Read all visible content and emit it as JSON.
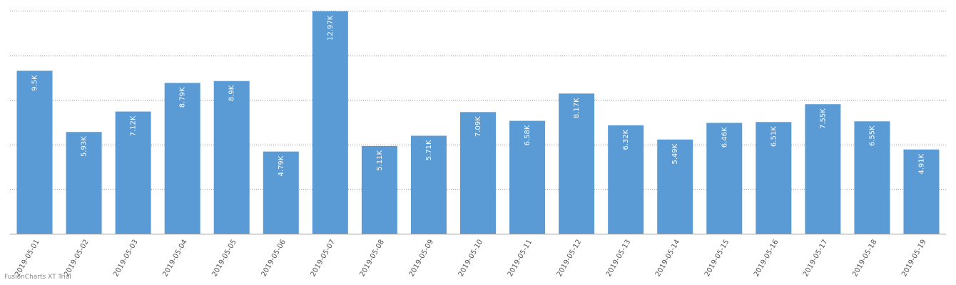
{
  "chart_data": {
    "type": "bar",
    "categories": [
      "2019-05-01",
      "2019-05-02",
      "2019-05-03",
      "2019-05-04",
      "2019-05-05",
      "2019-05-06",
      "2019-05-07",
      "2019-05-08",
      "2019-05-09",
      "2019-05-10",
      "2019-05-11",
      "2019-05-12",
      "2019-05-13",
      "2019-05-14",
      "2019-05-15",
      "2019-05-16",
      "2019-05-17",
      "2019-05-18",
      "2019-05-19"
    ],
    "values": [
      9500,
      5930,
      7120,
      8790,
      8900,
      4790,
      12970,
      5110,
      5710,
      7090,
      6580,
      8170,
      6320,
      5490,
      6460,
      6510,
      7550,
      6550,
      4910
    ],
    "value_labels": [
      "9.5K",
      "5.93K",
      "7.12K",
      "8.79K",
      "8.9K",
      "4.79K",
      "12.97K",
      "5.11K",
      "5.71K",
      "7.09K",
      "6.58K",
      "8.17K",
      "6.32K",
      "5.49K",
      "6.46K",
      "6.51K",
      "7.55K",
      "6.55K",
      "4.91K"
    ],
    "title": "",
    "xlabel": "",
    "ylabel": "",
    "ylim": [
      0,
      13000
    ],
    "grid": true,
    "grid_lines": 5,
    "legend": "none",
    "bar_color": "#5b9bd5"
  },
  "watermark": "FusionCharts XT Trial"
}
